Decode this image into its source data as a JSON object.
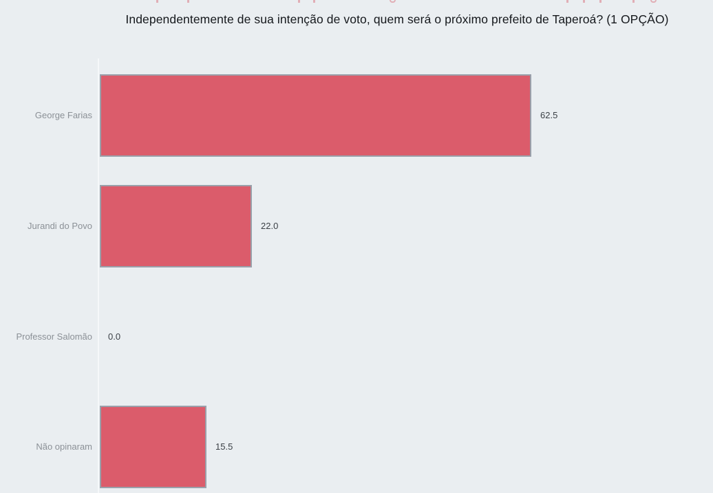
{
  "page": {
    "background_color": "#eaeef1"
  },
  "chart_data": {
    "type": "bar",
    "orientation": "horizontal",
    "title": "Independentemente de sua intenção de voto, quem será o próximo prefeito de Taperoá? (1 OPÇÃO)",
    "categories": [
      "George Farias",
      "Jurandi do Povo",
      "Professor Salomão",
      "Não opinaram"
    ],
    "values": [
      62.5,
      22.0,
      0.0,
      15.5
    ],
    "value_labels": [
      "62.5",
      "22.0",
      "0.0",
      "15.5"
    ],
    "xlabel": "",
    "ylabel": "",
    "xlim": [
      0,
      88.8
    ],
    "grid": false,
    "legend": null,
    "xaxis_ticks_visible": false,
    "bar_color": "#db5c6b",
    "bar_border_color": "#9aa0aa",
    "category_label_color": "#8b9096",
    "value_label_color": "#3a3f45",
    "title_color": "#15181c"
  }
}
